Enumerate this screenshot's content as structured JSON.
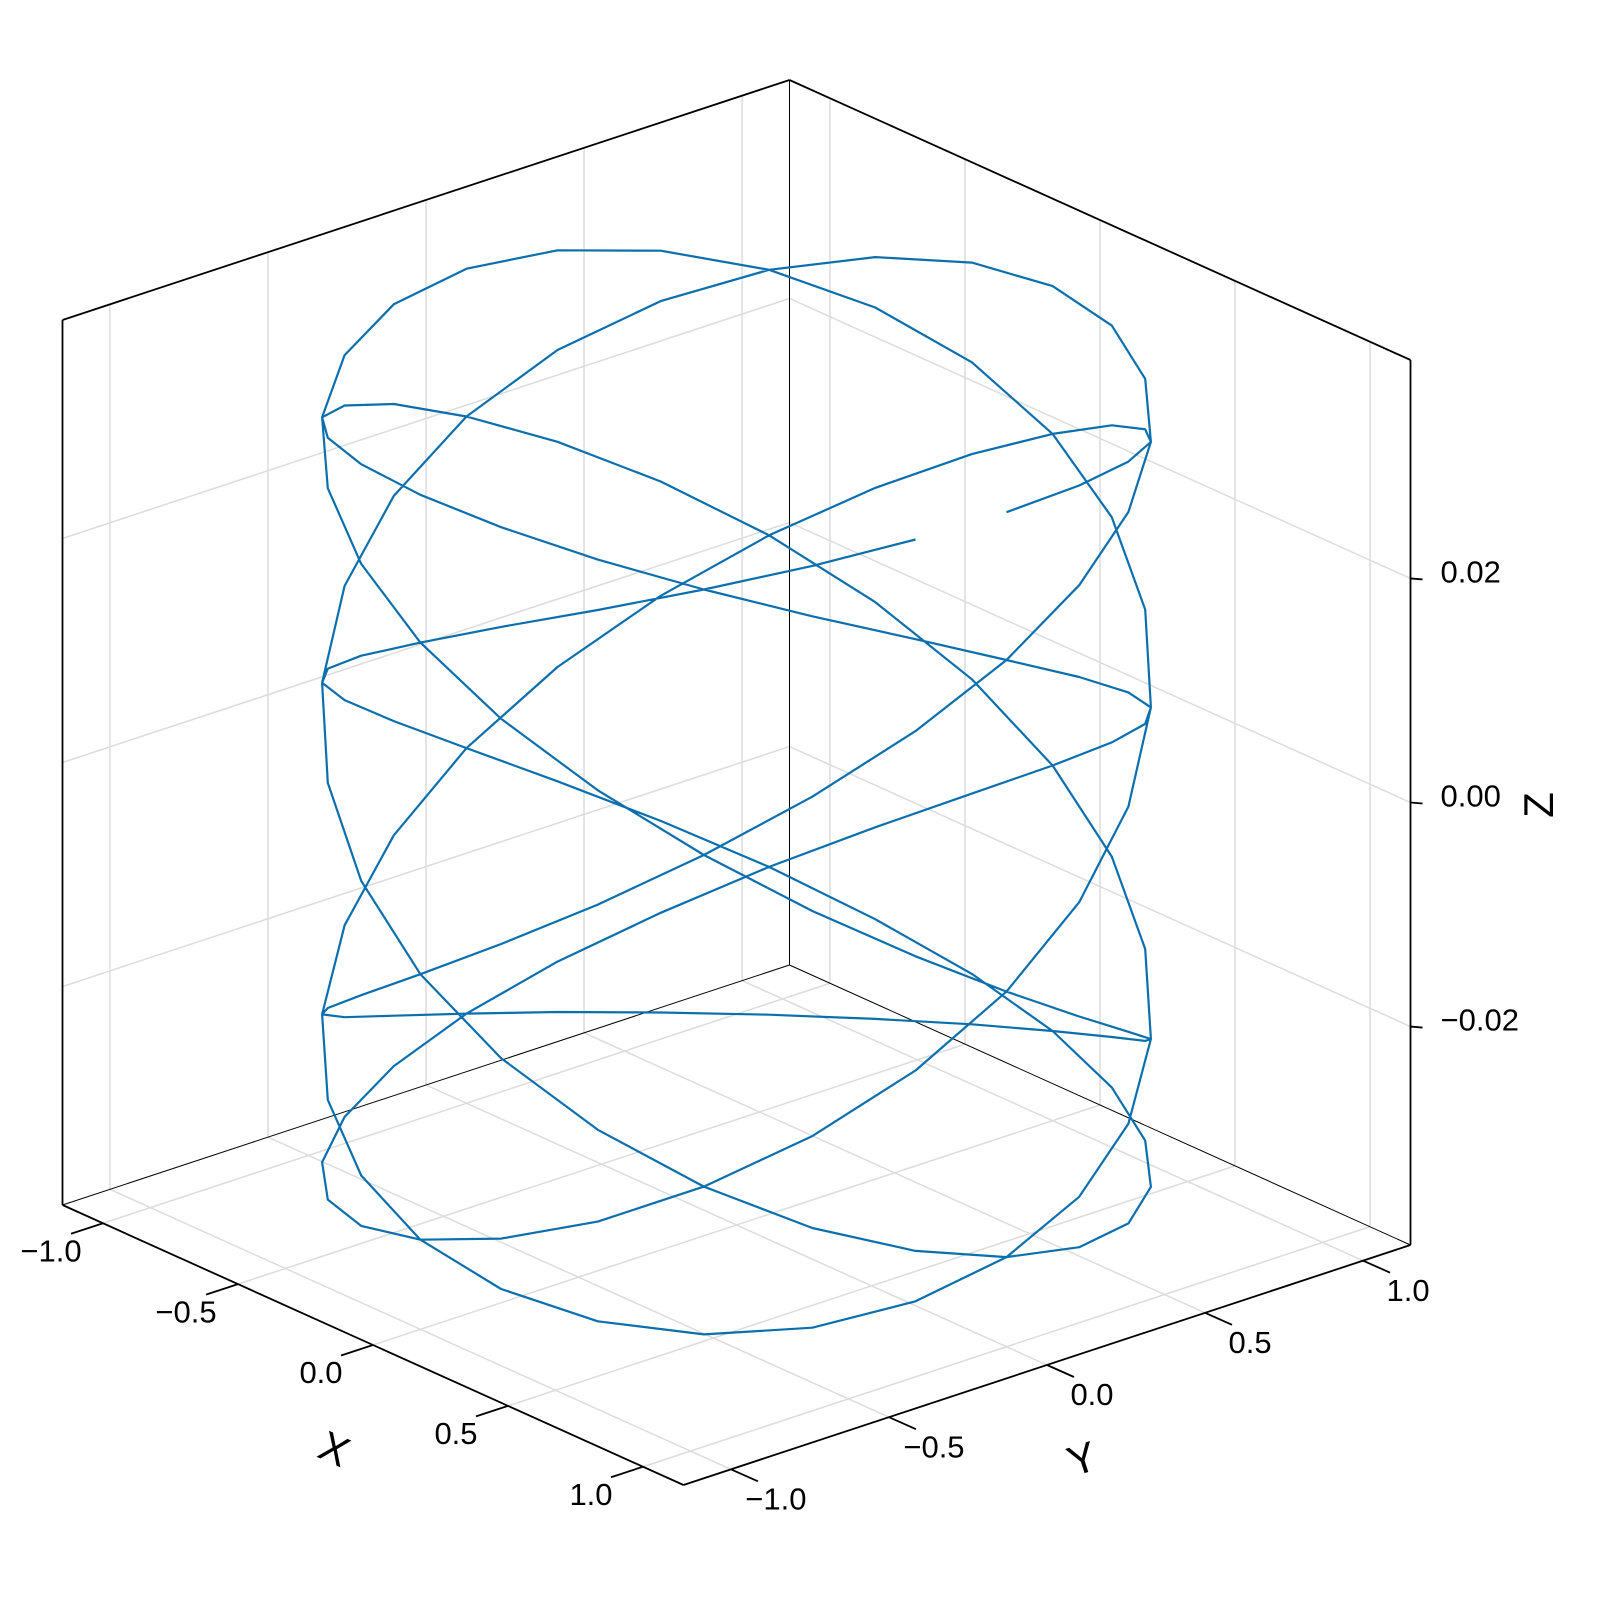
{
  "chart_data": {
    "type": "line3d",
    "xlabel": "X",
    "ylabel": "Y",
    "zlabel": "Z",
    "xlim": [
      -1.15,
      1.15
    ],
    "ylim": [
      -1.15,
      1.15
    ],
    "zlim": [
      -0.0395,
      0.0395
    ],
    "xticks": [
      {
        "value": -1,
        "label": "−1.0"
      },
      {
        "value": -0.5,
        "label": "−0.5"
      },
      {
        "value": 0,
        "label": "0.0"
      },
      {
        "value": 0.5,
        "label": "0.5"
      },
      {
        "value": 1,
        "label": "1.0"
      }
    ],
    "yticks": [
      {
        "value": -1,
        "label": "−1.0"
      },
      {
        "value": -0.5,
        "label": "−0.5"
      },
      {
        "value": 0,
        "label": "0.0"
      },
      {
        "value": 0.5,
        "label": "0.5"
      },
      {
        "value": 1,
        "label": "1.0"
      }
    ],
    "zticks": [
      {
        "value": -0.02,
        "label": "−0.02"
      },
      {
        "value": 0,
        "label": "0.00"
      },
      {
        "value": 0.02,
        "label": "0.02"
      }
    ],
    "grid": true,
    "series": [
      {
        "color": "#0b6fae",
        "x": [
          1,
          0.966,
          0.866,
          0.707,
          0.5,
          0.259,
          0,
          -0.259,
          -0.5,
          -0.707,
          -0.866,
          -0.966,
          -1,
          -0.966,
          -0.866,
          -0.707,
          -0.5,
          -0.259,
          0,
          0.259,
          0.5,
          0.707,
          0.866,
          0.966,
          1,
          0.966,
          0.866,
          0.707,
          0.5,
          0.259,
          0,
          -0.259,
          -0.5,
          -0.707,
          -0.866,
          -0.966,
          -1,
          -0.966,
          -0.866,
          -0.707,
          -0.5,
          -0.259,
          0,
          0.259,
          0.5,
          0.707,
          0.866,
          0.966,
          1,
          0.966,
          0.866,
          0.707,
          0.5,
          0.259,
          0,
          -0.259,
          -0.5,
          -0.707,
          -0.866,
          -0.966,
          -1,
          -0.966,
          -0.866,
          -0.707,
          -0.5,
          -0.259,
          0,
          0.259,
          0.5,
          0.707,
          0.866,
          0.966,
          1,
          0.966,
          0.866,
          0.707,
          0.5,
          0.259,
          0,
          -0.259,
          -0.5,
          -0.707,
          -0.866,
          -0.966,
          -1,
          -0.966,
          -0.866,
          -0.707,
          -0.5,
          -0.259,
          0,
          0.259,
          0.5,
          0.707,
          0.866,
          0.966,
          1,
          0.966,
          0.866,
          0.707,
          0.5,
          0.259,
          0,
          -0.259,
          -0.5,
          -0.707,
          -0.866,
          -0.966,
          -1,
          -0.966,
          -0.866,
          -0.707,
          -0.5,
          -0.259,
          0,
          0.259,
          0.5,
          0.707,
          0.866,
          0.966,
          1,
          0.966,
          0.866,
          0.707,
          0.5,
          0.259,
          0,
          -0.259,
          -0.5,
          -0.707,
          -0.866,
          -0.966,
          -1,
          -0.966,
          -0.866,
          -0.707,
          -0.5,
          -0.259,
          0,
          0.259,
          0.5,
          0.707,
          0.866,
          0.966,
          1,
          0.966,
          0.866,
          0.707,
          0.5,
          0.259,
          0,
          -0.259,
          -0.5,
          -0.707,
          -0.866,
          -0.966,
          -1,
          -0.966,
          -0.866,
          -0.707,
          -0.5,
          -0.259,
          0,
          0.259,
          0.5,
          0.707,
          0.866,
          0.966
        ],
        "y": [
          0,
          0.259,
          0.5,
          0.707,
          0.866,
          0.966,
          1,
          0.966,
          0.866,
          0.707,
          0.5,
          0.259,
          0,
          -0.259,
          -0.5,
          -0.707,
          -0.866,
          -0.966,
          -1,
          -0.966,
          -0.866,
          -0.707,
          -0.5,
          -0.259,
          0,
          0.259,
          0.5,
          0.707,
          0.866,
          0.966,
          1,
          0.966,
          0.866,
          0.707,
          0.5,
          0.259,
          0,
          -0.259,
          -0.5,
          -0.707,
          -0.866,
          -0.966,
          -1,
          -0.966,
          -0.866,
          -0.707,
          -0.5,
          -0.259,
          0,
          0.259,
          0.5,
          0.707,
          0.866,
          0.966,
          1,
          0.966,
          0.866,
          0.707,
          0.5,
          0.259,
          0,
          -0.259,
          -0.5,
          -0.707,
          -0.866,
          -0.966,
          -1,
          -0.966,
          -0.866,
          -0.707,
          -0.5,
          -0.259,
          0,
          0.259,
          0.5,
          0.707,
          0.866,
          0.966,
          1,
          0.966,
          0.866,
          0.707,
          0.5,
          0.259,
          0,
          -0.259,
          -0.5,
          -0.707,
          -0.866,
          -0.966,
          -1,
          -0.966,
          -0.866,
          -0.707,
          -0.5,
          -0.259,
          0,
          0.259,
          0.5,
          0.707,
          0.866,
          0.966,
          1,
          0.966,
          0.866,
          0.707,
          0.5,
          0.259,
          0,
          -0.259,
          -0.5,
          -0.707,
          -0.866,
          -0.966,
          -1,
          -0.966,
          -0.866,
          -0.707,
          -0.5,
          -0.259,
          0,
          0.259,
          0.5,
          0.707,
          0.866,
          0.966,
          1,
          0.966,
          0.866,
          0.707,
          0.5,
          0.259,
          0,
          -0.259,
          -0.5,
          -0.707,
          -0.866,
          -0.966,
          -1,
          -0.966,
          -0.866,
          -0.707,
          -0.5,
          -0.259,
          0,
          0.259,
          0.5,
          0.707,
          0.866,
          0.966,
          1,
          0.966,
          0.866,
          0.707,
          0.5,
          0.259,
          0,
          -0.259,
          -0.5,
          -0.707,
          -0.866,
          -0.966,
          -1,
          -0.966,
          -0.866,
          -0.707,
          -0.5,
          -0.259
        ],
        "z": [
          0.035,
          0.0346,
          0.0334,
          0.0315,
          0.0289,
          0.0257,
          0.0218,
          0.0175,
          0.0128,
          0.0078,
          0.0026,
          -0.0026,
          -0.0078,
          -0.0128,
          -0.0175,
          -0.0218,
          -0.0257,
          -0.0289,
          -0.0315,
          -0.0334,
          -0.0346,
          -0.035,
          -0.0346,
          -0.0334,
          -0.0315,
          -0.0289,
          -0.0257,
          -0.0218,
          -0.0175,
          -0.0128,
          -0.0078,
          -0.0026,
          0.0026,
          0.0078,
          0.0128,
          0.0175,
          0.0218,
          0.0257,
          0.0289,
          0.0315,
          0.0334,
          0.0346,
          0.035,
          0.0346,
          0.0334,
          0.0315,
          0.0289,
          0.0257,
          0.0218,
          0.0175,
          0.0128,
          0.0078,
          0.0026,
          -0.0026,
          -0.0078,
          -0.0128,
          -0.0175,
          -0.0218,
          -0.0257,
          -0.0289,
          -0.0315,
          -0.0334,
          -0.0346,
          -0.035,
          -0.0346,
          -0.0334,
          -0.0315,
          -0.0289,
          -0.0257,
          -0.0218,
          -0.0175,
          -0.0128,
          -0.0078,
          -0.0026,
          0.0026,
          0.0078,
          0.0128,
          0.0175,
          0.0218,
          0.0257,
          0.0289,
          0.0315,
          0.0334,
          0.0346,
          0.035,
          0.0346,
          0.0334,
          0.0315,
          0.0289,
          0.0257,
          0.0218,
          0.0175,
          0.0128,
          0.0078,
          0.0026,
          -0.0026,
          -0.0078,
          -0.0128,
          -0.0175,
          -0.0218,
          -0.0257,
          -0.0289,
          -0.0315,
          -0.0334,
          -0.0346,
          -0.035,
          -0.0346,
          -0.0334,
          -0.0315,
          -0.0289,
          -0.0257,
          -0.0218,
          -0.0175,
          -0.0128,
          -0.0078,
          -0.0026,
          0.0026,
          0.0078,
          0.0128,
          0.0175,
          0.0218,
          0.0257,
          0.0289,
          0.0315,
          0.0334,
          0.0346,
          0.035,
          0.0346,
          0.0334,
          0.0315,
          0.0289,
          0.0257,
          0.0218,
          0.0175,
          0.0128,
          0.0078,
          0.0026,
          -0.0026,
          -0.0078,
          -0.0128,
          -0.0175,
          -0.0218,
          -0.0257,
          -0.0289,
          -0.0315,
          -0.0334,
          -0.0346,
          -0.035,
          -0.0346,
          -0.0334,
          -0.0315,
          -0.0289,
          -0.0257,
          -0.0218,
          -0.0175,
          -0.0128,
          -0.0078,
          -0.0026,
          0.0026,
          0.0078,
          0.0128,
          0.0175,
          0.0218,
          0.0257,
          0.0289,
          0.0315,
          0.0334,
          0.0346
        ]
      }
    ]
  }
}
